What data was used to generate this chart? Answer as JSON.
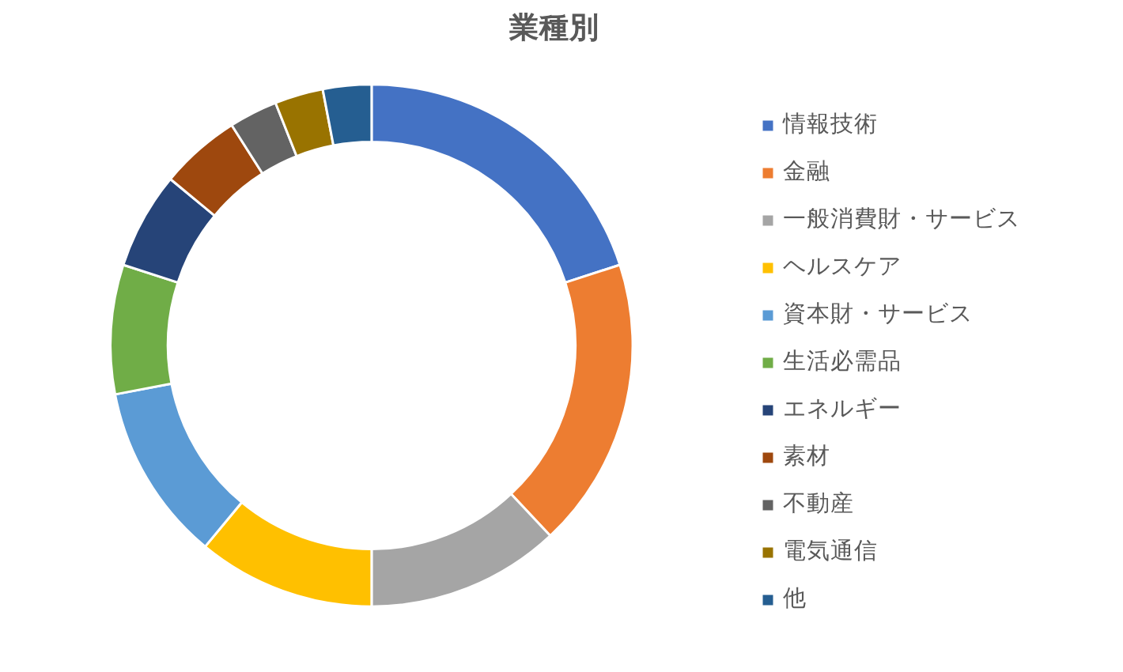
{
  "chart_data": {
    "type": "donut",
    "title": "業種別",
    "categories": [
      "情報技術",
      "金融",
      "一般消費財・サービス",
      "ヘルスケア",
      "資本財・サービス",
      "生活必需品",
      "エネルギー",
      "素材",
      "不動産",
      "電気通信",
      "他"
    ],
    "values": [
      20,
      18,
      12,
      11,
      11,
      8,
      6,
      5,
      3,
      3,
      3
    ],
    "colors": [
      "#4472c4",
      "#ed7d31",
      "#a5a5a5",
      "#ffc000",
      "#5b9bd5",
      "#70ad47",
      "#264478",
      "#9e480e",
      "#636363",
      "#997300",
      "#255e91"
    ],
    "legend": "right"
  }
}
